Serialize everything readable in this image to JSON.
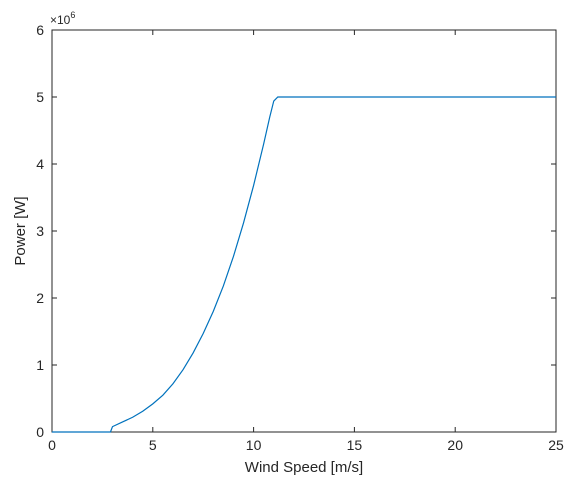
{
  "chart_data": {
    "type": "line",
    "xlabel": "Wind Speed [m/s]",
    "ylabel": "Power [W]",
    "y_multiplier": "×10",
    "y_exponent": "6",
    "xlim": [
      0,
      25
    ],
    "ylim": [
      0,
      6
    ],
    "grid": false,
    "xticks": [
      0,
      5,
      10,
      15,
      20,
      25
    ],
    "yticks": [
      0,
      1,
      2,
      3,
      4,
      5,
      6
    ],
    "line_color": "#0072BD",
    "x": [
      0,
      2.9,
      3.0,
      3.5,
      4,
      4.5,
      5,
      5.5,
      6,
      6.5,
      7,
      7.5,
      8,
      8.5,
      9,
      9.5,
      10,
      10.5,
      10.8,
      11.0,
      11.2,
      25
    ],
    "y": [
      0,
      0,
      0.08,
      0.15,
      0.22,
      0.31,
      0.42,
      0.55,
      0.72,
      0.93,
      1.18,
      1.47,
      1.8,
      2.18,
      2.62,
      3.12,
      3.68,
      4.3,
      4.7,
      4.94,
      5.0,
      5.0
    ]
  }
}
